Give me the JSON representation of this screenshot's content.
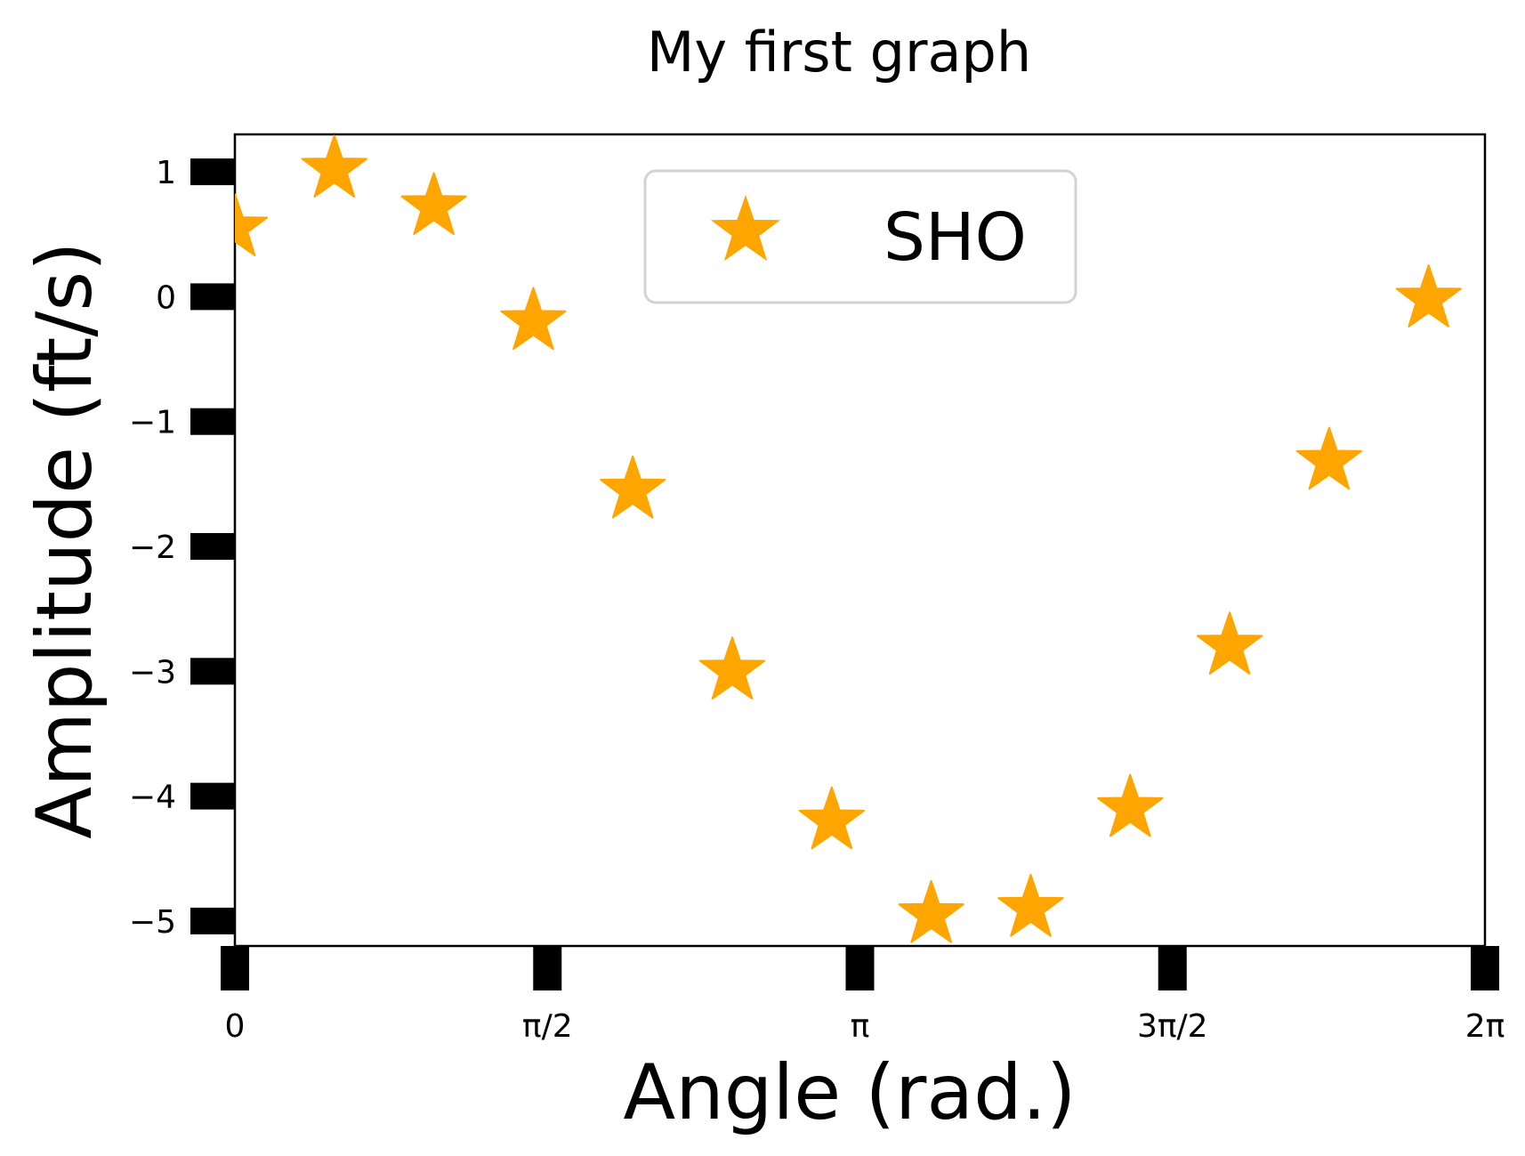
{
  "chart_data": {
    "type": "scatter",
    "title": "My first graph",
    "xlabel": "Angle (rad.)",
    "ylabel": "Amplitude (ft/s)",
    "xlim": [
      0,
      6.2832
    ],
    "ylim": [
      -5.2,
      1.3
    ],
    "xticks": [
      {
        "value": 0,
        "label": "0"
      },
      {
        "value": 1.5708,
        "label": "π/2"
      },
      {
        "value": 3.1416,
        "label": "π"
      },
      {
        "value": 4.7124,
        "label": "3π/2"
      },
      {
        "value": 6.2832,
        "label": "2π"
      }
    ],
    "yticks": [
      {
        "value": 1,
        "label": "1"
      },
      {
        "value": 0,
        "label": "0"
      },
      {
        "value": -1,
        "label": "−1"
      },
      {
        "value": -2,
        "label": "−2"
      },
      {
        "value": -3,
        "label": "−3"
      },
      {
        "value": -4,
        "label": "−4"
      },
      {
        "value": -5,
        "label": "−5"
      }
    ],
    "grid": false,
    "legend_position": "top-center",
    "series": [
      {
        "name": "SHO",
        "marker": "star",
        "color": "#FFA500",
        "x": [
          0.0,
          0.5,
          1.0,
          1.5,
          2.0,
          2.5,
          3.0,
          3.5,
          4.0,
          4.5,
          5.0,
          5.5,
          6.0
        ],
        "y": [
          0.55,
          1.02,
          0.72,
          -0.2,
          -1.55,
          -3.0,
          -4.2,
          -4.95,
          -4.9,
          -4.1,
          -2.8,
          -1.32,
          -0.02
        ]
      }
    ]
  }
}
